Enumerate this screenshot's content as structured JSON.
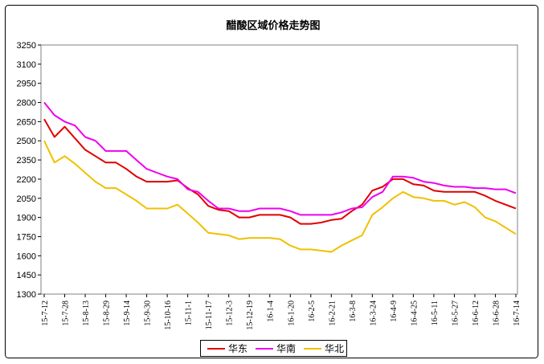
{
  "chart_data": {
    "type": "line",
    "title": "醋酸区域价格走势图",
    "xlabel": "",
    "ylabel": "",
    "ylim": [
      1300,
      3250
    ],
    "yticks": [
      1300,
      1450,
      1600,
      1750,
      1900,
      2050,
      2200,
      2350,
      2500,
      2650,
      2800,
      2950,
      3100,
      3250
    ],
    "grid": false,
    "legend_position": "bottom",
    "x_tick_labels": [
      "15-7-12",
      "15-7-28",
      "15-8-13",
      "15-8-29",
      "15-9-14",
      "15-9-30",
      "15-10-16",
      "15-11-1",
      "15-11-17",
      "15-12-3",
      "15-12-19",
      "16-1-4",
      "16-1-20",
      "16-2-5",
      "16-2-21",
      "16-3-8",
      "16-3-24",
      "16-4-9",
      "16-4-25",
      "16-5-11",
      "16-5-27",
      "16-6-12",
      "16-6-28",
      "16-7-14"
    ],
    "x": [
      "15-7-12",
      "15-7-20",
      "15-7-28",
      "15-8-5",
      "15-8-13",
      "15-8-21",
      "15-8-29",
      "15-9-6",
      "15-9-14",
      "15-9-22",
      "15-9-30",
      "15-10-8",
      "15-10-16",
      "15-10-24",
      "15-11-1",
      "15-11-9",
      "15-11-17",
      "15-11-25",
      "15-12-3",
      "15-12-11",
      "15-12-19",
      "15-12-27",
      "16-1-4",
      "16-1-12",
      "16-1-20",
      "16-1-28",
      "16-2-5",
      "16-2-13",
      "16-2-21",
      "16-2-29",
      "16-3-8",
      "16-3-16",
      "16-3-24",
      "16-4-1",
      "16-4-9",
      "16-4-17",
      "16-4-25",
      "16-5-3",
      "16-5-11",
      "16-5-19",
      "16-5-27",
      "16-6-4",
      "16-6-12",
      "16-6-20",
      "16-6-28",
      "16-7-6",
      "16-7-14"
    ],
    "series": [
      {
        "name": "华东",
        "color": "#e00000",
        "values": [
          2670,
          2530,
          2610,
          2520,
          2430,
          2380,
          2330,
          2330,
          2280,
          2220,
          2180,
          2180,
          2180,
          2190,
          2130,
          2080,
          1990,
          1960,
          1950,
          1900,
          1900,
          1920,
          1920,
          1920,
          1900,
          1850,
          1850,
          1860,
          1880,
          1890,
          1950,
          2000,
          2110,
          2140,
          2200,
          2200,
          2160,
          2150,
          2110,
          2100,
          2100,
          2100,
          2100,
          2070,
          2030,
          2000,
          1970
        ]
      },
      {
        "name": "华南",
        "color": "#ee00ee",
        "values": [
          2800,
          2700,
          2650,
          2620,
          2530,
          2500,
          2420,
          2420,
          2420,
          2350,
          2280,
          2250,
          2220,
          2200,
          2120,
          2100,
          2030,
          1970,
          1970,
          1950,
          1950,
          1970,
          1970,
          1970,
          1950,
          1920,
          1920,
          1920,
          1920,
          1940,
          1970,
          1980,
          2060,
          2100,
          2220,
          2220,
          2210,
          2180,
          2170,
          2150,
          2140,
          2140,
          2130,
          2130,
          2120,
          2120,
          2090
        ]
      },
      {
        "name": "华北",
        "color": "#f0c000",
        "values": [
          2500,
          2330,
          2380,
          2320,
          2250,
          2180,
          2130,
          2130,
          2080,
          2030,
          1970,
          1970,
          1970,
          2000,
          1930,
          1860,
          1780,
          1770,
          1760,
          1730,
          1740,
          1740,
          1740,
          1730,
          1680,
          1650,
          1650,
          1640,
          1630,
          1680,
          1720,
          1760,
          1920,
          1980,
          2050,
          2100,
          2060,
          2050,
          2030,
          2030,
          2000,
          2020,
          1980,
          1900,
          1870,
          1820,
          1770
        ]
      }
    ]
  }
}
